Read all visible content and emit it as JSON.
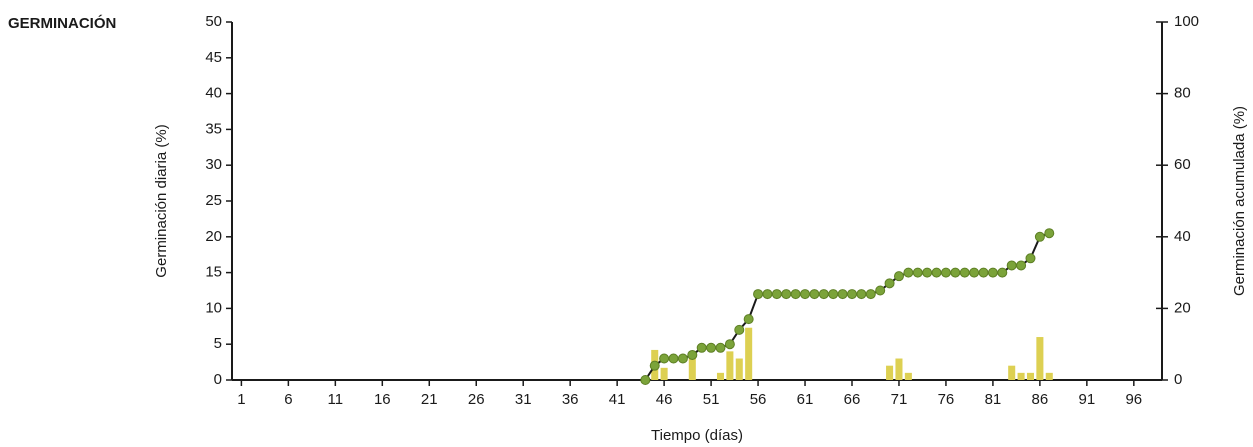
{
  "chart_data": {
    "type": "bar",
    "title": "GERMINACIÓN",
    "x_label": "Tiempo (días)",
    "y_label": "Germinación diaria (%)",
    "y2_label": "Germinación acumulada (%)",
    "xlim": [
      0,
      99
    ],
    "xticks": [
      1,
      6,
      11,
      16,
      21,
      26,
      31,
      36,
      41,
      46,
      51,
      56,
      61,
      66,
      71,
      76,
      81,
      86,
      91,
      96
    ],
    "ylim": [
      0,
      50
    ],
    "yticks": [
      0,
      5,
      10,
      15,
      20,
      25,
      30,
      35,
      40,
      45,
      50
    ],
    "y2lim": [
      0,
      100
    ],
    "y2ticks": [
      0,
      20,
      40,
      60,
      80,
      100
    ],
    "series": [
      {
        "type": "bar",
        "color": "#ddd052",
        "x": [
          45,
          46,
          49,
          52,
          53,
          54,
          55,
          70,
          71,
          72,
          83,
          84,
          85,
          86,
          87
        ],
        "values": [
          4.2,
          1.7,
          3,
          1,
          4,
          3,
          7.3,
          2,
          3,
          1,
          2,
          1,
          1,
          6,
          1
        ]
      },
      {
        "type": "line",
        "axis": "y2",
        "color": "#1a1a1a",
        "marker_color": "#7ba33a",
        "x": [
          44,
          45,
          46,
          47,
          48,
          49,
          50,
          51,
          52,
          53,
          54,
          55,
          56,
          57,
          58,
          59,
          60,
          61,
          62,
          63,
          64,
          65,
          66,
          67,
          68,
          69,
          70,
          71,
          72,
          73,
          74,
          75,
          76,
          77,
          78,
          79,
          80,
          81,
          82,
          83,
          84,
          85,
          86,
          87
        ],
        "values": [
          0,
          4,
          6,
          6,
          6,
          7,
          9,
          9,
          9,
          10,
          14,
          17,
          24,
          24,
          24,
          24,
          24,
          24,
          24,
          24,
          24,
          24,
          24,
          24,
          24,
          25,
          27,
          29,
          30,
          30,
          30,
          30,
          30,
          30,
          30,
          30,
          30,
          30,
          30,
          32,
          32,
          34,
          40,
          41
        ]
      }
    ]
  }
}
